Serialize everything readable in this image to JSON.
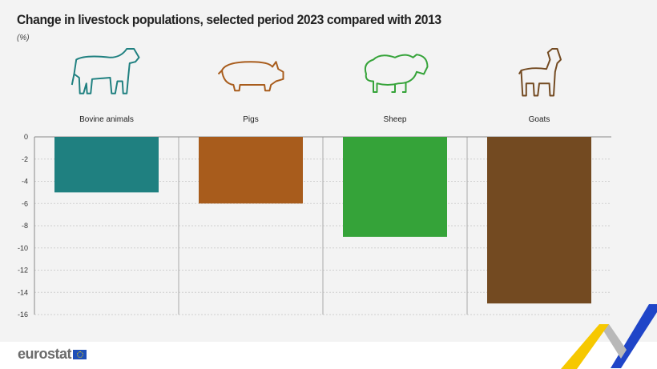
{
  "title": "Change in livestock populations, selected period 2023 compared with 2013",
  "unit": "(%)",
  "brand": "eurostat",
  "chart_data": {
    "type": "bar",
    "title": "Change in livestock populations, selected period 2023 compared with 2013",
    "ylabel": "(%)",
    "xlabel": "",
    "categories": [
      "Bovine animals",
      "Pigs",
      "Sheep",
      "Goats"
    ],
    "values": [
      -5,
      -6,
      -9,
      -15
    ],
    "colors": [
      "#1f8080",
      "#a85c1c",
      "#35a339",
      "#734a21"
    ],
    "icons": [
      "cow-icon",
      "pig-icon",
      "sheep-icon",
      "goat-icon"
    ],
    "ylim": [
      -16,
      0
    ],
    "yticks": [
      0,
      -2,
      -4,
      -6,
      -8,
      -10,
      -12,
      -14,
      -16
    ],
    "grid": true
  }
}
